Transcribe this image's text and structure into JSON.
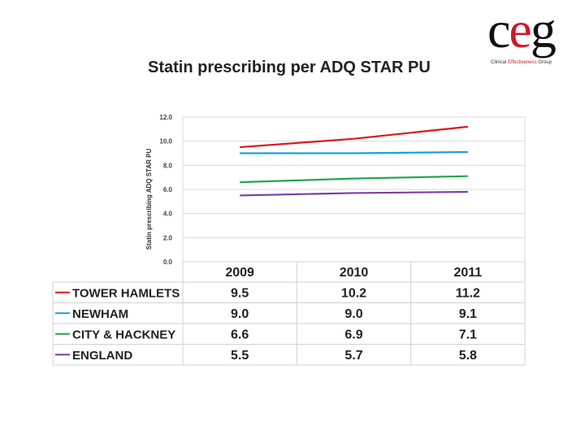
{
  "title": "Statin prescribing per ADQ STAR PU",
  "logo": {
    "text_c": "c",
    "text_e": "e",
    "text_g": "g",
    "sub_a": "Clinical ",
    "sub_b": "Effectiveness",
    "sub_c": " Group"
  },
  "chart_data": {
    "type": "line",
    "title": "Statin prescribing per ADQ STAR PU",
    "xlabel": "",
    "ylabel": "Statin prescribing ADQ STAR PU",
    "ylim": [
      0,
      12
    ],
    "yticks": [
      "0.0",
      "2.0",
      "4.0",
      "6.0",
      "8.0",
      "10.0",
      "12.0"
    ],
    "categories": [
      "2009",
      "2010",
      "2011"
    ],
    "grid": true,
    "legend": "data-table below chart",
    "series": [
      {
        "name": "TOWER HAMLETS",
        "color": "#d7191c",
        "values": [
          9.5,
          10.2,
          11.2
        ],
        "labels": [
          "9.5",
          "10.2",
          "11.2"
        ]
      },
      {
        "name": "NEWHAM",
        "color": "#1ba1d8",
        "values": [
          9.0,
          9.0,
          9.1
        ],
        "labels": [
          "9.0",
          "9.0",
          "9.1"
        ]
      },
      {
        "name": "CITY & HACKNEY",
        "color": "#22a64f",
        "values": [
          6.6,
          6.9,
          7.1
        ],
        "labels": [
          "6.6",
          "6.9",
          "7.1"
        ]
      },
      {
        "name": "ENGLAND",
        "color": "#7b3fa0",
        "values": [
          5.5,
          5.7,
          5.8
        ],
        "labels": [
          "5.5",
          "5.7",
          "5.8"
        ]
      }
    ]
  }
}
